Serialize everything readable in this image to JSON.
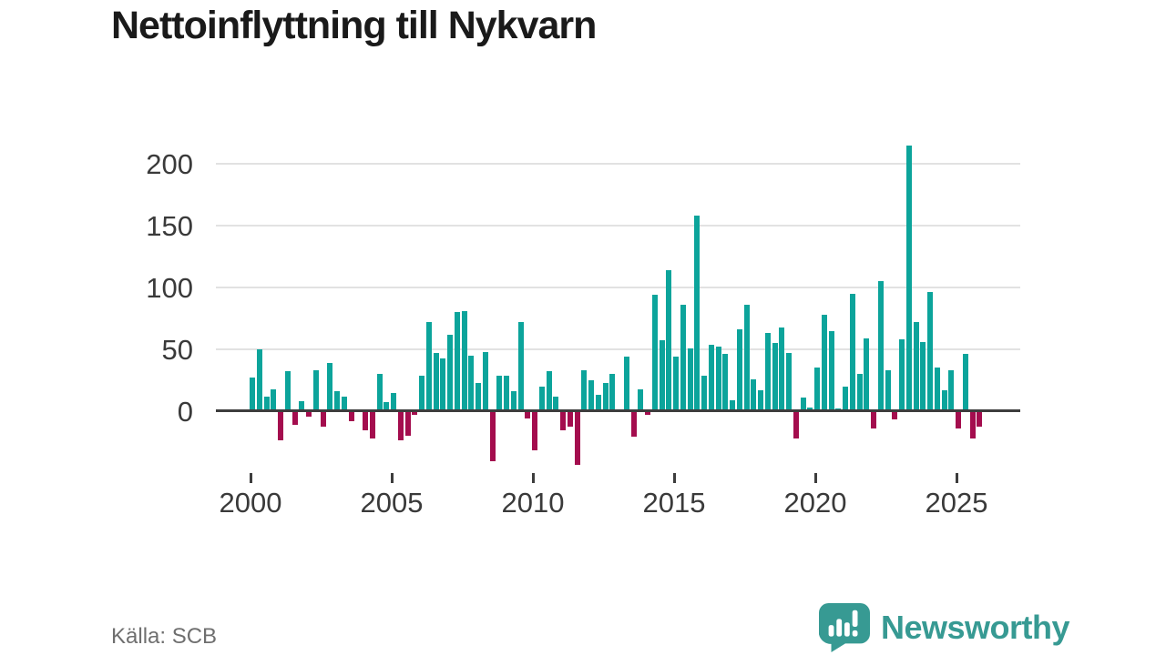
{
  "title": "Nettoinflyttning till Nykvarn",
  "source_label": "Källa: SCB",
  "footer": {
    "brand_name": "Newsworthy",
    "brand_icon": "bar-chart-speech-bubble-icon"
  },
  "colors": {
    "positive_bar": "#0ca49b",
    "negative_bar": "#a40d4e",
    "grid": "#e2e2e2",
    "axis": "#3d3d3d",
    "tick_text": "#3a3a3a",
    "title_text": "#1a1a1a",
    "source_text": "#6f6f6f",
    "brand_teal": "#379a93"
  },
  "chart_data": {
    "type": "bar",
    "title": "Nettoinflyttning till Nykvarn",
    "x_unit": "quarter",
    "x_start": "2000-Q1",
    "x_end": "2025-Q4",
    "grid": true,
    "legend": "none",
    "y_ticks": [
      0,
      50,
      100,
      150,
      200
    ],
    "x_ticks": [
      2000,
      2005,
      2010,
      2015,
      2020,
      2025
    ],
    "ylim": [
      -45,
      220
    ],
    "positive_color": "#0ca49b",
    "negative_color": "#a40d4e",
    "values": [
      27,
      50,
      12,
      18,
      -23,
      32,
      -10,
      8,
      -4,
      33,
      -12,
      39,
      16,
      12,
      -7,
      0,
      -15,
      -21,
      30,
      7,
      15,
      -23,
      -19,
      -2,
      29,
      72,
      47,
      43,
      62,
      80,
      81,
      45,
      23,
      48,
      -40,
      29,
      29,
      16,
      72,
      -5,
      -31,
      20,
      32,
      12,
      -15,
      -12,
      -43,
      33,
      25,
      13,
      23,
      30,
      0,
      44,
      -20,
      18,
      -2,
      94,
      57,
      114,
      44,
      86,
      51,
      158,
      29,
      54,
      52,
      46,
      9,
      66,
      86,
      26,
      17,
      63,
      55,
      68,
      47,
      -21,
      11,
      3,
      35,
      78,
      65,
      2,
      20,
      95,
      30,
      59,
      -13,
      105,
      33,
      -6,
      58,
      215,
      72,
      56,
      96,
      35,
      17,
      33,
      -13,
      46,
      -21,
      -12
    ]
  }
}
